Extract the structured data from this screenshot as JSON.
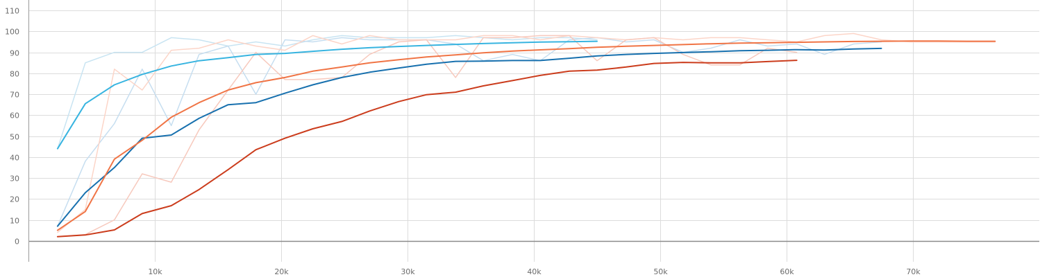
{
  "chart_data": {
    "type": "line",
    "title": "",
    "xlabel": "",
    "ylabel": "",
    "xlim": [
      0,
      80000
    ],
    "ylim": [
      -10,
      115
    ],
    "x_ticks": [
      10000,
      20000,
      30000,
      40000,
      50000,
      60000,
      70000
    ],
    "x_tick_labels": [
      "10k",
      "20k",
      "30k",
      "40k",
      "50k",
      "60k",
      "70k"
    ],
    "y_ticks": [
      0,
      10,
      20,
      30,
      40,
      50,
      60,
      70,
      80,
      90,
      100,
      110
    ],
    "y_tick_labels": [
      "0",
      "10",
      "20",
      "30",
      "40",
      "50",
      "60",
      "70",
      "80",
      "90",
      "100",
      "110"
    ],
    "grid": true,
    "legend": "none",
    "series": [
      {
        "color": "#c8e4f2",
        "opacity": 1,
        "width": 1.5,
        "x": [
          2300,
          4500,
          6800,
          9000,
          11300,
          13500,
          15800,
          18000,
          20300,
          22500,
          24800,
          27000,
          29300,
          31500,
          33800,
          36000,
          38300,
          40500,
          42800,
          45000
        ],
        "y": [
          44,
          85,
          90,
          90,
          97,
          96,
          93,
          95,
          93,
          96,
          98,
          97,
          97,
          97,
          98,
          97,
          96,
          97,
          97,
          96
        ]
      },
      {
        "color": "#c6def0",
        "opacity": 1,
        "width": 1.5,
        "x": [
          2300,
          4500,
          6800,
          9000,
          11300,
          13500,
          15800,
          18000,
          20300,
          22500,
          24800,
          27000,
          29300,
          31500,
          33800,
          36000,
          38300,
          40500,
          42800,
          45000,
          47300,
          49500,
          51800,
          54000,
          56300,
          58500,
          60800,
          63000,
          65300,
          67500
        ],
        "y": [
          7,
          38,
          56,
          82,
          55,
          89,
          93,
          70,
          96,
          95,
          97,
          96,
          96,
          96,
          94,
          86,
          89,
          86,
          96,
          97,
          95,
          96,
          90,
          92,
          96,
          93,
          94,
          89,
          94,
          95
        ]
      },
      {
        "color": "#fcd5c8",
        "opacity": 1,
        "width": 1.5,
        "x": [
          2300,
          4500,
          6800,
          9000,
          11300,
          13500,
          15800,
          18000,
          20300,
          22500,
          24800,
          27000,
          29300,
          31500,
          33800,
          36000,
          38300,
          40500,
          42800,
          45000,
          47300,
          49500,
          51800,
          54000,
          56300,
          58500,
          60800,
          63000,
          65300,
          67500,
          69800,
          72000,
          74300,
          76500
        ],
        "y": [
          4,
          15,
          82,
          72,
          91,
          92,
          96,
          93,
          91,
          98,
          94,
          98,
          96,
          96,
          96,
          98,
          98,
          96,
          98,
          97,
          96,
          97,
          96,
          97,
          97,
          96,
          95,
          98,
          99,
          96,
          95,
          95,
          95,
          95
        ]
      },
      {
        "color": "#f7c9bd",
        "opacity": 1,
        "width": 1.5,
        "x": [
          2300,
          4500,
          6800,
          9000,
          11300,
          13500,
          15800,
          18000,
          20300,
          22500,
          24800,
          27000,
          29300,
          31500,
          33800,
          36000,
          38300,
          40500,
          42800,
          45000,
          47300,
          49500,
          51800,
          54000,
          56300,
          58500,
          60800
        ],
        "y": [
          2,
          3,
          10,
          32,
          28,
          53,
          72,
          90,
          77,
          77,
          78,
          89,
          95,
          96,
          78,
          97,
          97,
          98,
          98,
          86,
          96,
          97,
          89,
          84,
          84,
          92,
          90
        ]
      },
      {
        "color": "#37b4e0",
        "opacity": 1,
        "width": 2,
        "x": [
          2300,
          4500,
          6800,
          9000,
          11300,
          13500,
          15800,
          18000,
          20300,
          22500,
          24800,
          27000,
          29300,
          31500,
          33800,
          36000,
          38300,
          40500,
          42800,
          45000
        ],
        "y": [
          44,
          65.5,
          74.5,
          79.5,
          83.5,
          86,
          87.5,
          89,
          89.5,
          90.5,
          91.5,
          92.2,
          92.8,
          93.3,
          93.8,
          94.2,
          94.6,
          94.9,
          95.1,
          95.3
        ]
      },
      {
        "color": "#1770ae",
        "opacity": 1,
        "width": 2,
        "x": [
          2300,
          4500,
          6800,
          9000,
          11300,
          13500,
          15800,
          18000,
          20300,
          22500,
          24800,
          27000,
          29300,
          31500,
          33800,
          36000,
          38300,
          40500,
          42800,
          45000,
          47300,
          49500,
          51800,
          54000,
          56300,
          58500,
          60800,
          63000,
          65300,
          67500
        ],
        "y": [
          7,
          23,
          35,
          49,
          50.5,
          58.5,
          65,
          66,
          70.5,
          74.5,
          78,
          80.5,
          82.5,
          84.3,
          85.7,
          85.8,
          86.1,
          86.1,
          87.2,
          88.3,
          89,
          89.5,
          89.9,
          90.3,
          90.8,
          91,
          91.3,
          91.1,
          91.6,
          91.9
        ]
      },
      {
        "color": "#f07445",
        "opacity": 1,
        "width": 2,
        "x": [
          2300,
          4500,
          6800,
          9000,
          11300,
          13500,
          15800,
          18000,
          20300,
          22500,
          24800,
          27000,
          29300,
          31500,
          33800,
          36000,
          38300,
          40500,
          42800,
          45000,
          47300,
          49500,
          51800,
          54000,
          56300,
          58500,
          60800,
          63000,
          65300,
          67500,
          69800,
          72000,
          74300,
          76500
        ],
        "y": [
          5,
          14,
          39,
          48,
          59,
          66,
          72,
          75.5,
          78,
          81,
          83,
          85,
          86.5,
          87.8,
          88.8,
          89.8,
          90.6,
          91.2,
          91.8,
          92.4,
          92.9,
          93.3,
          93.7,
          94.1,
          94.4,
          94.6,
          94.8,
          95,
          95.2,
          95.3,
          95.4,
          95.4,
          95.3,
          95.3
        ]
      },
      {
        "color": "#cb3c1c",
        "opacity": 1,
        "width": 2,
        "x": [
          2300,
          4500,
          6800,
          9000,
          11300,
          13500,
          15800,
          18000,
          20300,
          22500,
          24800,
          27000,
          29300,
          31500,
          33800,
          36000,
          38300,
          40500,
          42800,
          45000,
          47300,
          49500,
          51800,
          54000,
          56300,
          58500,
          60800
        ],
        "y": [
          2,
          2.8,
          5.2,
          13,
          16.8,
          24.5,
          34,
          43.5,
          49,
          53.5,
          57,
          62,
          66.5,
          69.8,
          71,
          74,
          76.5,
          79,
          81,
          81.5,
          83,
          84.7,
          85.2,
          85,
          85,
          85.6,
          86.2
        ]
      }
    ]
  }
}
